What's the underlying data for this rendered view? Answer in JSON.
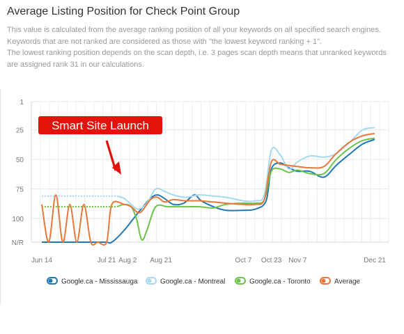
{
  "header": {
    "title": "Average Listing Position for Check Point Group",
    "description_lines": [
      "This value is calculated from the average ranking position of all your keywords on all specified search engines.",
      "Keywords that are not ranked are considered as those with \"the lowest keyword ranking + 1\".",
      "The lowest ranking position depends on the scan depth, i.e. 3 pages scan depth means that unranked keywords",
      "are assigned rank 31 in our calculations."
    ]
  },
  "chart_data": {
    "type": "line",
    "y_reversed": true,
    "ylim": [
      1,
      120
    ],
    "y_ticks": [
      {
        "value": 1,
        "label": "1"
      },
      {
        "value": 25,
        "label": "25"
      },
      {
        "value": 50,
        "label": "50"
      },
      {
        "value": 75,
        "label": "75"
      },
      {
        "value": 100,
        "label": "100"
      },
      {
        "value": 120,
        "label": "N/R"
      }
    ],
    "x_ticks": [
      {
        "label": "Jun 14",
        "date": "2020-06-14"
      },
      {
        "label": "Jul 21",
        "date": "2020-07-21"
      },
      {
        "label": "Aug 2",
        "date": "2020-08-02"
      },
      {
        "label": "Aug 21",
        "date": "2020-08-21"
      },
      {
        "label": "Oct 7",
        "date": "2020-10-07"
      },
      {
        "label": "Oct 23",
        "date": "2020-10-23"
      },
      {
        "label": "Nov 7",
        "date": "2020-11-07"
      },
      {
        "label": "Dec 21",
        "date": "2020-12-21"
      }
    ],
    "grid": true,
    "legend_position": "bottom",
    "annotation": {
      "text": "Smart Site Launch",
      "color": "#e3120b"
    },
    "series": [
      {
        "name": "Google.ca - Mississauga",
        "color": "#1f78b4",
        "dashed_until": null,
        "points": [
          [
            "2020-06-14",
            120
          ],
          [
            "2020-06-18",
            120
          ],
          [
            "2020-06-22",
            120
          ],
          [
            "2020-06-26",
            120
          ],
          [
            "2020-06-30",
            120
          ],
          [
            "2020-07-04",
            120
          ],
          [
            "2020-07-08",
            120
          ],
          [
            "2020-07-12",
            120
          ],
          [
            "2020-07-16",
            120
          ],
          [
            "2020-07-21",
            120
          ],
          [
            "2020-07-24",
            120
          ],
          [
            "2020-07-31",
            110
          ],
          [
            "2020-08-08",
            95
          ],
          [
            "2020-08-15",
            83
          ],
          [
            "2020-08-19",
            80
          ],
          [
            "2020-08-23",
            83
          ],
          [
            "2020-08-28",
            88
          ],
          [
            "2020-09-03",
            87
          ],
          [
            "2020-09-09",
            80
          ],
          [
            "2020-09-13",
            85
          ],
          [
            "2020-09-20",
            90
          ],
          [
            "2020-09-27",
            93
          ],
          [
            "2020-10-07",
            93
          ],
          [
            "2020-10-14",
            92
          ],
          [
            "2020-10-20",
            85
          ],
          [
            "2020-10-23",
            58
          ],
          [
            "2020-10-28",
            53
          ],
          [
            "2020-11-02",
            57
          ],
          [
            "2020-11-07",
            60
          ],
          [
            "2020-11-14",
            60
          ],
          [
            "2020-11-22",
            65
          ],
          [
            "2020-11-29",
            55
          ],
          [
            "2020-12-07",
            45
          ],
          [
            "2020-12-14",
            37
          ],
          [
            "2020-12-21",
            33
          ]
        ]
      },
      {
        "name": "Google.ca - Montreal",
        "color": "#a6d8f0",
        "dashed_until": "2020-07-27",
        "points": [
          [
            "2020-06-14",
            81
          ],
          [
            "2020-07-27",
            81
          ],
          [
            "2020-07-31",
            83
          ],
          [
            "2020-08-04",
            88
          ],
          [
            "2020-08-08",
            92
          ],
          [
            "2020-08-13",
            87
          ],
          [
            "2020-08-18",
            75
          ],
          [
            "2020-08-23",
            77
          ],
          [
            "2020-08-28",
            80
          ],
          [
            "2020-09-04",
            82
          ],
          [
            "2020-09-12",
            80
          ],
          [
            "2020-09-20",
            81
          ],
          [
            "2020-09-27",
            82
          ],
          [
            "2020-10-07",
            85
          ],
          [
            "2020-10-14",
            85
          ],
          [
            "2020-10-19",
            80
          ],
          [
            "2020-10-23",
            42
          ],
          [
            "2020-10-28",
            46
          ],
          [
            "2020-11-02",
            58
          ],
          [
            "2020-11-07",
            52
          ],
          [
            "2020-11-14",
            47
          ],
          [
            "2020-11-22",
            48
          ],
          [
            "2020-11-29",
            45
          ],
          [
            "2020-12-07",
            35
          ],
          [
            "2020-12-14",
            25
          ],
          [
            "2020-12-21",
            23
          ]
        ]
      },
      {
        "name": "Google.ca - Toronto",
        "color": "#6cc24a",
        "dashed_until": "2020-07-27",
        "points": [
          [
            "2020-06-14",
            90
          ],
          [
            "2020-07-27",
            90
          ],
          [
            "2020-07-31",
            88
          ],
          [
            "2020-08-04",
            90
          ],
          [
            "2020-08-07",
            100
          ],
          [
            "2020-08-10",
            118
          ],
          [
            "2020-08-13",
            110
          ],
          [
            "2020-08-18",
            90
          ],
          [
            "2020-08-25",
            90
          ],
          [
            "2020-09-04",
            90
          ],
          [
            "2020-09-12",
            90
          ],
          [
            "2020-09-20",
            91
          ],
          [
            "2020-09-27",
            88
          ],
          [
            "2020-10-07",
            87
          ],
          [
            "2020-10-14",
            87
          ],
          [
            "2020-10-19",
            84
          ],
          [
            "2020-10-23",
            60
          ],
          [
            "2020-10-28",
            58
          ],
          [
            "2020-11-02",
            61
          ],
          [
            "2020-11-07",
            59
          ],
          [
            "2020-11-14",
            62
          ],
          [
            "2020-11-22",
            62
          ],
          [
            "2020-11-29",
            50
          ],
          [
            "2020-12-07",
            40
          ],
          [
            "2020-12-14",
            34
          ],
          [
            "2020-12-21",
            32
          ]
        ]
      },
      {
        "name": "Average",
        "color": "#e8773a",
        "dashed_until": null,
        "points": [
          [
            "2020-06-14",
            88
          ],
          [
            "2020-06-18",
            120
          ],
          [
            "2020-06-22",
            80
          ],
          [
            "2020-06-26",
            120
          ],
          [
            "2020-06-30",
            88
          ],
          [
            "2020-07-04",
            120
          ],
          [
            "2020-07-08",
            88
          ],
          [
            "2020-07-12",
            120
          ],
          [
            "2020-07-16",
            120
          ],
          [
            "2020-07-21",
            120
          ],
          [
            "2020-07-24",
            88
          ],
          [
            "2020-07-31",
            88
          ],
          [
            "2020-08-04",
            90
          ],
          [
            "2020-08-09",
            95
          ],
          [
            "2020-08-15",
            84
          ],
          [
            "2020-08-19",
            82
          ],
          [
            "2020-08-23",
            86
          ],
          [
            "2020-08-28",
            84
          ],
          [
            "2020-09-04",
            85
          ],
          [
            "2020-09-12",
            85
          ],
          [
            "2020-09-20",
            86
          ],
          [
            "2020-09-27",
            87
          ],
          [
            "2020-10-07",
            88
          ],
          [
            "2020-10-14",
            88
          ],
          [
            "2020-10-19",
            84
          ],
          [
            "2020-10-23",
            52
          ],
          [
            "2020-10-28",
            54
          ],
          [
            "2020-11-02",
            55
          ],
          [
            "2020-11-07",
            56
          ],
          [
            "2020-11-14",
            57
          ],
          [
            "2020-11-22",
            56
          ],
          [
            "2020-11-29",
            45
          ],
          [
            "2020-12-07",
            35
          ],
          [
            "2020-12-14",
            30
          ],
          [
            "2020-12-21",
            28
          ]
        ]
      }
    ]
  }
}
